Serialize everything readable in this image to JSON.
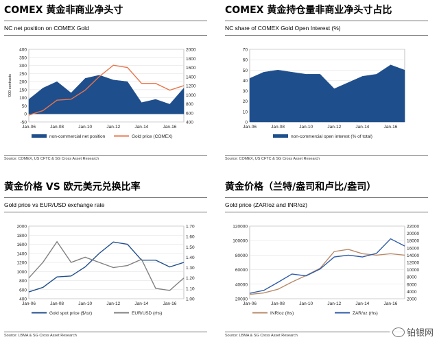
{
  "panels": [
    {
      "title": "COMEX 黄金非商业净头寸",
      "header": "NC net position on COMEX Gold",
      "source": "Source: COMEX, US CFTC & SG Cross Asset Research"
    },
    {
      "title": "COMEX 黄金持仓量非商业净头寸占比",
      "header": "NC share of COMEX Gold Open Interest (%)",
      "source": "Source: COMEX, US CFTC & SG Cross Asset Research"
    },
    {
      "title": "黄金价格 VS 欧元美元兑换比率",
      "header": "Gold price vs EUR/USD exchange rate",
      "source": "Source: LBMA & SG Cross Asset Research"
    },
    {
      "title": "黄金价格（兰特/盎司和卢比/盎司）",
      "header": "Gold price (ZAR/oz and INR/oz)",
      "source": "Source: LBMA & SG Cross Asset Research"
    }
  ],
  "watermark": "铂银网",
  "chart_data": [
    {
      "type": "area",
      "x": [
        "Jan-06",
        "Jan-07",
        "Jan-08",
        "Jan-09",
        "Jan-10",
        "Jan-11",
        "Jan-12",
        "Jan-13",
        "Jan-14",
        "Jan-15",
        "Jan-16",
        "Jan-17"
      ],
      "x_ticks": [
        "Jan-06",
        "Jan-08",
        "Jan-10",
        "Jan-12",
        "Jan-14",
        "Jan-16"
      ],
      "ylabel": "'000 contracts",
      "series": [
        {
          "name": "non-commercial net position",
          "axis": "left",
          "type": "area",
          "values": [
            90,
            160,
            200,
            130,
            220,
            240,
            210,
            200,
            70,
            90,
            60,
            160
          ]
        },
        {
          "name": "Gold price (COMEX)",
          "axis": "right",
          "type": "line",
          "values": [
            550,
            650,
            880,
            900,
            1100,
            1400,
            1650,
            1600,
            1250,
            1250,
            1100,
            1200
          ]
        }
      ],
      "y_left": {
        "ticks": [
          -50,
          0,
          50,
          100,
          150,
          200,
          250,
          300,
          350,
          400
        ],
        "ylim": [
          -50,
          400
        ]
      },
      "y_right": {
        "ticks": [
          400,
          600,
          800,
          1000,
          1200,
          1400,
          1600,
          1800,
          2000
        ],
        "ylim": [
          400,
          2000
        ]
      },
      "legend": "bottom",
      "grid": true
    },
    {
      "type": "area",
      "x": [
        "Jan-06",
        "Jan-07",
        "Jan-08",
        "Jan-09",
        "Jan-10",
        "Jan-11",
        "Jan-12",
        "Jan-13",
        "Jan-14",
        "Jan-15",
        "Jan-16",
        "Jan-17"
      ],
      "x_ticks": [
        "Jan-06",
        "Jan-08",
        "Jan-10",
        "Jan-12",
        "Jan-14",
        "Jan-16"
      ],
      "series": [
        {
          "name": "non-commercial open interest (% of total)",
          "values": [
            42,
            48,
            50,
            48,
            46,
            46,
            32,
            38,
            44,
            46,
            55,
            50
          ]
        }
      ],
      "y_left": {
        "ticks": [
          0,
          10,
          20,
          30,
          40,
          50,
          60,
          70
        ],
        "ylim": [
          0,
          70
        ]
      },
      "legend": "bottom",
      "grid": true
    },
    {
      "type": "line",
      "x": [
        "Jan-06",
        "Jan-07",
        "Jan-08",
        "Jan-09",
        "Jan-10",
        "Jan-11",
        "Jan-12",
        "Jan-13",
        "Jan-14",
        "Jan-15",
        "Jan-16",
        "Jan-17"
      ],
      "x_ticks": [
        "Jan-06",
        "Jan-08",
        "Jan-10",
        "Jan-12",
        "Jan-14",
        "Jan-16"
      ],
      "series": [
        {
          "name": "Gold spot price ($/oz)",
          "axis": "left",
          "values": [
            550,
            650,
            880,
            900,
            1100,
            1400,
            1650,
            1600,
            1250,
            1250,
            1100,
            1200
          ]
        },
        {
          "name": "EUR/USD (rhs)",
          "axis": "right",
          "values": [
            1.2,
            1.35,
            1.55,
            1.35,
            1.4,
            1.35,
            1.3,
            1.32,
            1.38,
            1.1,
            1.08,
            1.2
          ]
        }
      ],
      "y_left": {
        "ticks": [
          400,
          600,
          800,
          1000,
          1200,
          1400,
          1600,
          1800,
          2000
        ],
        "ylim": [
          400,
          2000
        ]
      },
      "y_right": {
        "ticks": [
          "1.00",
          "1.10",
          "1.20",
          "1.30",
          "1.40",
          "1.50",
          "1.60",
          "1.70"
        ],
        "ylim": [
          1.0,
          1.7
        ]
      },
      "legend": "bottom",
      "grid": true
    },
    {
      "type": "line",
      "x": [
        "Jan-06",
        "Jan-07",
        "Jan-08",
        "Jan-09",
        "Jan-10",
        "Jan-11",
        "Jan-12",
        "Jan-13",
        "Jan-14",
        "Jan-15",
        "Jan-16",
        "Jan-17"
      ],
      "x_ticks": [
        "Jan-06",
        "Jan-08",
        "Jan-10",
        "Jan-12",
        "Jan-14",
        "Jan-16"
      ],
      "series": [
        {
          "name": "INR/oz (lhs)",
          "axis": "left",
          "values": [
            26000,
            28000,
            33000,
            43000,
            52000,
            62000,
            85000,
            88000,
            82000,
            80000,
            82000,
            80000
          ]
        },
        {
          "name": "ZAR/oz (rhs)",
          "axis": "right",
          "values": [
            3500,
            4300,
            6500,
            8800,
            8300,
            10200,
            13500,
            14000,
            13500,
            14500,
            18500,
            16500
          ]
        }
      ],
      "y_left": {
        "ticks": [
          20000,
          40000,
          60000,
          80000,
          100000,
          120000
        ],
        "ylim": [
          20000,
          120000
        ]
      },
      "y_right": {
        "ticks": [
          2000,
          4000,
          6000,
          8000,
          10000,
          12000,
          14000,
          16000,
          18000,
          20000,
          22000
        ],
        "ylim": [
          2000,
          22000
        ]
      },
      "legend": "bottom",
      "grid": true
    }
  ],
  "colors": {
    "navy": "#1f4e8c",
    "orange": "#e8744a",
    "grey": "#808080",
    "tan": "#b88a6a",
    "blue": "#2e5aa6"
  }
}
